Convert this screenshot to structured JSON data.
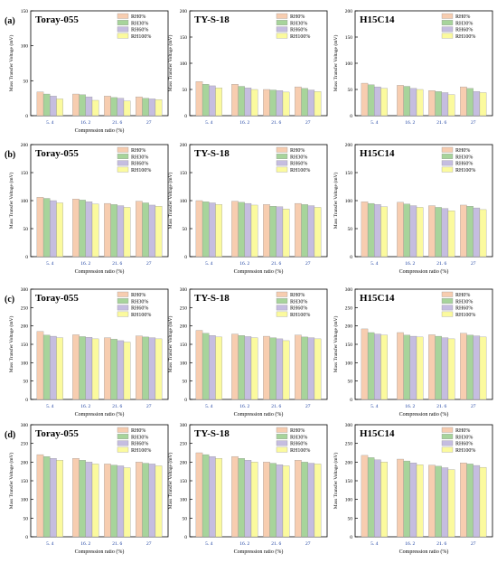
{
  "figure": {
    "series_names": [
      "RH0%",
      "RH30%",
      "RH60%",
      "RH100%"
    ],
    "colors": [
      "#F7CDB0",
      "#A7D49B",
      "#C5BDE0",
      "#FBFA9E"
    ]
  },
  "chart_data": [
    {
      "type": "bar",
      "panel": "(a)",
      "title": "Toray-055",
      "ylabel": "Mass Transfer Voltage (mV)",
      "xlabel": "Compression ratio (%)",
      "ylim": [
        0,
        150
      ],
      "yticks": [
        0,
        50,
        100,
        150
      ],
      "categories": [
        "5. 4",
        "16. 2",
        "21. 6",
        "27"
      ],
      "series": [
        {
          "name": "RH0%",
          "values": [
            34,
            31,
            28,
            27
          ]
        },
        {
          "name": "RH30%",
          "values": [
            31,
            30,
            26,
            25
          ]
        },
        {
          "name": "RH60%",
          "values": [
            28,
            27,
            25,
            24
          ]
        },
        {
          "name": "RH100%",
          "values": [
            24,
            22,
            21,
            23
          ]
        }
      ]
    },
    {
      "type": "bar",
      "panel": "(a)",
      "title": "TY-S-18",
      "ylabel": "Mass Transfer Voltage (mV)",
      "xlabel": "",
      "ylim": [
        0,
        200
      ],
      "yticks": [
        0,
        50,
        100,
        150,
        200
      ],
      "categories": [
        "5. 4",
        "16. 2",
        "21. 6",
        "27"
      ],
      "series": [
        {
          "name": "RH0%",
          "values": [
            65,
            60,
            50,
            55
          ]
        },
        {
          "name": "RH30%",
          "values": [
            60,
            56,
            49,
            52
          ]
        },
        {
          "name": "RH60%",
          "values": [
            57,
            53,
            48,
            49
          ]
        },
        {
          "name": "RH100%",
          "values": [
            53,
            50,
            45,
            46
          ]
        }
      ]
    },
    {
      "type": "bar",
      "panel": "(a)",
      "title": "H15C14",
      "ylabel": "Mass Transfer Voltage (mV)",
      "xlabel": "",
      "ylim": [
        0,
        200
      ],
      "yticks": [
        0,
        50,
        100,
        150,
        200
      ],
      "categories": [
        "5. 4",
        "16. 2",
        "21. 6",
        "27"
      ],
      "series": [
        {
          "name": "RH0%",
          "values": [
            62,
            58,
            48,
            55
          ]
        },
        {
          "name": "RH30%",
          "values": [
            59,
            56,
            46,
            52
          ]
        },
        {
          "name": "RH60%",
          "values": [
            55,
            52,
            44,
            46
          ]
        },
        {
          "name": "RH100%",
          "values": [
            52,
            50,
            40,
            44
          ]
        }
      ]
    },
    {
      "type": "bar",
      "panel": "(b)",
      "title": "Toray-055",
      "ylabel": "Mass Transfer Voltage (mV)",
      "xlabel": "Compression ratio (%)",
      "ylim": [
        0,
        200
      ],
      "yticks": [
        0,
        50,
        100,
        150,
        200
      ],
      "categories": [
        "5. 4",
        "16. 2",
        "21. 6",
        "27"
      ],
      "series": [
        {
          "name": "RH0%",
          "values": [
            106,
            103,
            95,
            99
          ]
        },
        {
          "name": "RH30%",
          "values": [
            104,
            101,
            93,
            96
          ]
        },
        {
          "name": "RH60%",
          "values": [
            100,
            98,
            91,
            92
          ]
        },
        {
          "name": "RH100%",
          "values": [
            96,
            94,
            88,
            90
          ]
        }
      ]
    },
    {
      "type": "bar",
      "panel": "(b)",
      "title": "TY-S-18",
      "ylabel": "Mass Transfer Voltage (mV)",
      "xlabel": "Compression ratio (%)",
      "ylim": [
        0,
        200
      ],
      "yticks": [
        0,
        50,
        100,
        150,
        200
      ],
      "categories": [
        "5. 4",
        "16. 2",
        "21. 6",
        "27"
      ],
      "series": [
        {
          "name": "RH0%",
          "values": [
            100,
            99,
            93,
            95
          ]
        },
        {
          "name": "RH30%",
          "values": [
            98,
            97,
            90,
            93
          ]
        },
        {
          "name": "RH60%",
          "values": [
            96,
            95,
            89,
            91
          ]
        },
        {
          "name": "RH100%",
          "values": [
            93,
            92,
            85,
            88
          ]
        }
      ]
    },
    {
      "type": "bar",
      "panel": "(b)",
      "title": "H15C14",
      "ylabel": "Mass Transfer Voltage (mV)",
      "xlabel": "Compression ratio (%)",
      "ylim": [
        0,
        200
      ],
      "yticks": [
        0,
        50,
        100,
        150,
        200
      ],
      "categories": [
        "5. 4",
        "16. 2",
        "21. 6",
        "27"
      ],
      "series": [
        {
          "name": "RH0%",
          "values": [
            98,
            97,
            91,
            92
          ]
        },
        {
          "name": "RH30%",
          "values": [
            95,
            94,
            88,
            90
          ]
        },
        {
          "name": "RH60%",
          "values": [
            93,
            91,
            86,
            87
          ]
        },
        {
          "name": "RH100%",
          "values": [
            89,
            88,
            82,
            84
          ]
        }
      ]
    },
    {
      "type": "bar",
      "panel": "(c)",
      "title": "Toray-055",
      "ylabel": "Mass Transfer Voltage (mV)",
      "xlabel": "Compression ratio (%)",
      "ylim": [
        0,
        300
      ],
      "yticks": [
        0,
        50,
        100,
        150,
        200,
        250,
        300
      ],
      "categories": [
        "5. 4",
        "16. 2",
        "21. 6",
        "27"
      ],
      "series": [
        {
          "name": "RH0%",
          "values": [
            185,
            176,
            168,
            173
          ]
        },
        {
          "name": "RH30%",
          "values": [
            175,
            171,
            164,
            170
          ]
        },
        {
          "name": "RH60%",
          "values": [
            172,
            169,
            160,
            168
          ]
        },
        {
          "name": "RH100%",
          "values": [
            168,
            165,
            156,
            165
          ]
        }
      ]
    },
    {
      "type": "bar",
      "panel": "(c)",
      "title": "TY-S-18",
      "ylabel": "Mass Transfer Voltage (mV)",
      "xlabel": "Compression ratio (%)",
      "ylim": [
        0,
        300
      ],
      "yticks": [
        0,
        50,
        100,
        150,
        200,
        250,
        300
      ],
      "categories": [
        "5. 4",
        "16. 2",
        "21. 6",
        "27"
      ],
      "series": [
        {
          "name": "RH0%",
          "values": [
            188,
            178,
            172,
            175
          ]
        },
        {
          "name": "RH30%",
          "values": [
            180,
            174,
            168,
            170
          ]
        },
        {
          "name": "RH60%",
          "values": [
            174,
            171,
            165,
            168
          ]
        },
        {
          "name": "RH100%",
          "values": [
            170,
            168,
            160,
            165
          ]
        }
      ]
    },
    {
      "type": "bar",
      "panel": "(c)",
      "title": "H15C14",
      "ylabel": "Mass Transfer Voltage (mV)",
      "xlabel": "Compression ratio (%)",
      "ylim": [
        0,
        300
      ],
      "yticks": [
        0,
        50,
        100,
        150,
        200,
        250,
        300
      ],
      "categories": [
        "5. 4",
        "16. 2",
        "21. 6",
        "27"
      ],
      "series": [
        {
          "name": "RH0%",
          "values": [
            192,
            182,
            176,
            180
          ]
        },
        {
          "name": "RH30%",
          "values": [
            182,
            175,
            172,
            175
          ]
        },
        {
          "name": "RH60%",
          "values": [
            178,
            172,
            168,
            173
          ]
        },
        {
          "name": "RH100%",
          "values": [
            175,
            170,
            165,
            170
          ]
        }
      ]
    },
    {
      "type": "bar",
      "panel": "(d)",
      "title": "Toray-055",
      "ylabel": "Mass Transfer Voltage (mV)",
      "xlabel": "Compression ratio (%)",
      "ylim": [
        0,
        300
      ],
      "yticks": [
        0,
        50,
        100,
        150,
        200,
        250,
        300
      ],
      "categories": [
        "5. 4",
        "16. 2",
        "21. 6",
        "27"
      ],
      "series": [
        {
          "name": "RH0%",
          "values": [
            220,
            210,
            195,
            200
          ]
        },
        {
          "name": "RH30%",
          "values": [
            215,
            205,
            192,
            197
          ]
        },
        {
          "name": "RH60%",
          "values": [
            210,
            200,
            190,
            195
          ]
        },
        {
          "name": "RH100%",
          "values": [
            205,
            195,
            185,
            190
          ]
        }
      ]
    },
    {
      "type": "bar",
      "panel": "(d)",
      "title": "TY-S-18",
      "ylabel": "Mass Transfer Voltage (mV)",
      "xlabel": "Compression ratio (%)",
      "ylim": [
        0,
        300
      ],
      "yticks": [
        0,
        50,
        100,
        150,
        200,
        250,
        300
      ],
      "categories": [
        "5. 4",
        "16. 2",
        "21. 6",
        "27"
      ],
      "series": [
        {
          "name": "RH0%",
          "values": [
            225,
            215,
            200,
            205
          ]
        },
        {
          "name": "RH30%",
          "values": [
            220,
            210,
            197,
            200
          ]
        },
        {
          "name": "RH60%",
          "values": [
            215,
            205,
            193,
            197
          ]
        },
        {
          "name": "RH100%",
          "values": [
            210,
            200,
            190,
            195
          ]
        }
      ]
    },
    {
      "type": "bar",
      "panel": "(d)",
      "title": "H15C14",
      "ylabel": "Mass Transfer Voltage (mV)",
      "xlabel": "Compression ratio (%)",
      "ylim": [
        0,
        300
      ],
      "yticks": [
        0,
        50,
        100,
        150,
        200,
        250,
        300
      ],
      "categories": [
        "5. 4",
        "16. 2",
        "21. 6",
        "27"
      ],
      "series": [
        {
          "name": "RH0%",
          "values": [
            218,
            208,
            192,
            198
          ]
        },
        {
          "name": "RH30%",
          "values": [
            212,
            203,
            189,
            195
          ]
        },
        {
          "name": "RH60%",
          "values": [
            206,
            198,
            185,
            191
          ]
        },
        {
          "name": "RH100%",
          "values": [
            200,
            193,
            180,
            186
          ]
        }
      ]
    }
  ]
}
